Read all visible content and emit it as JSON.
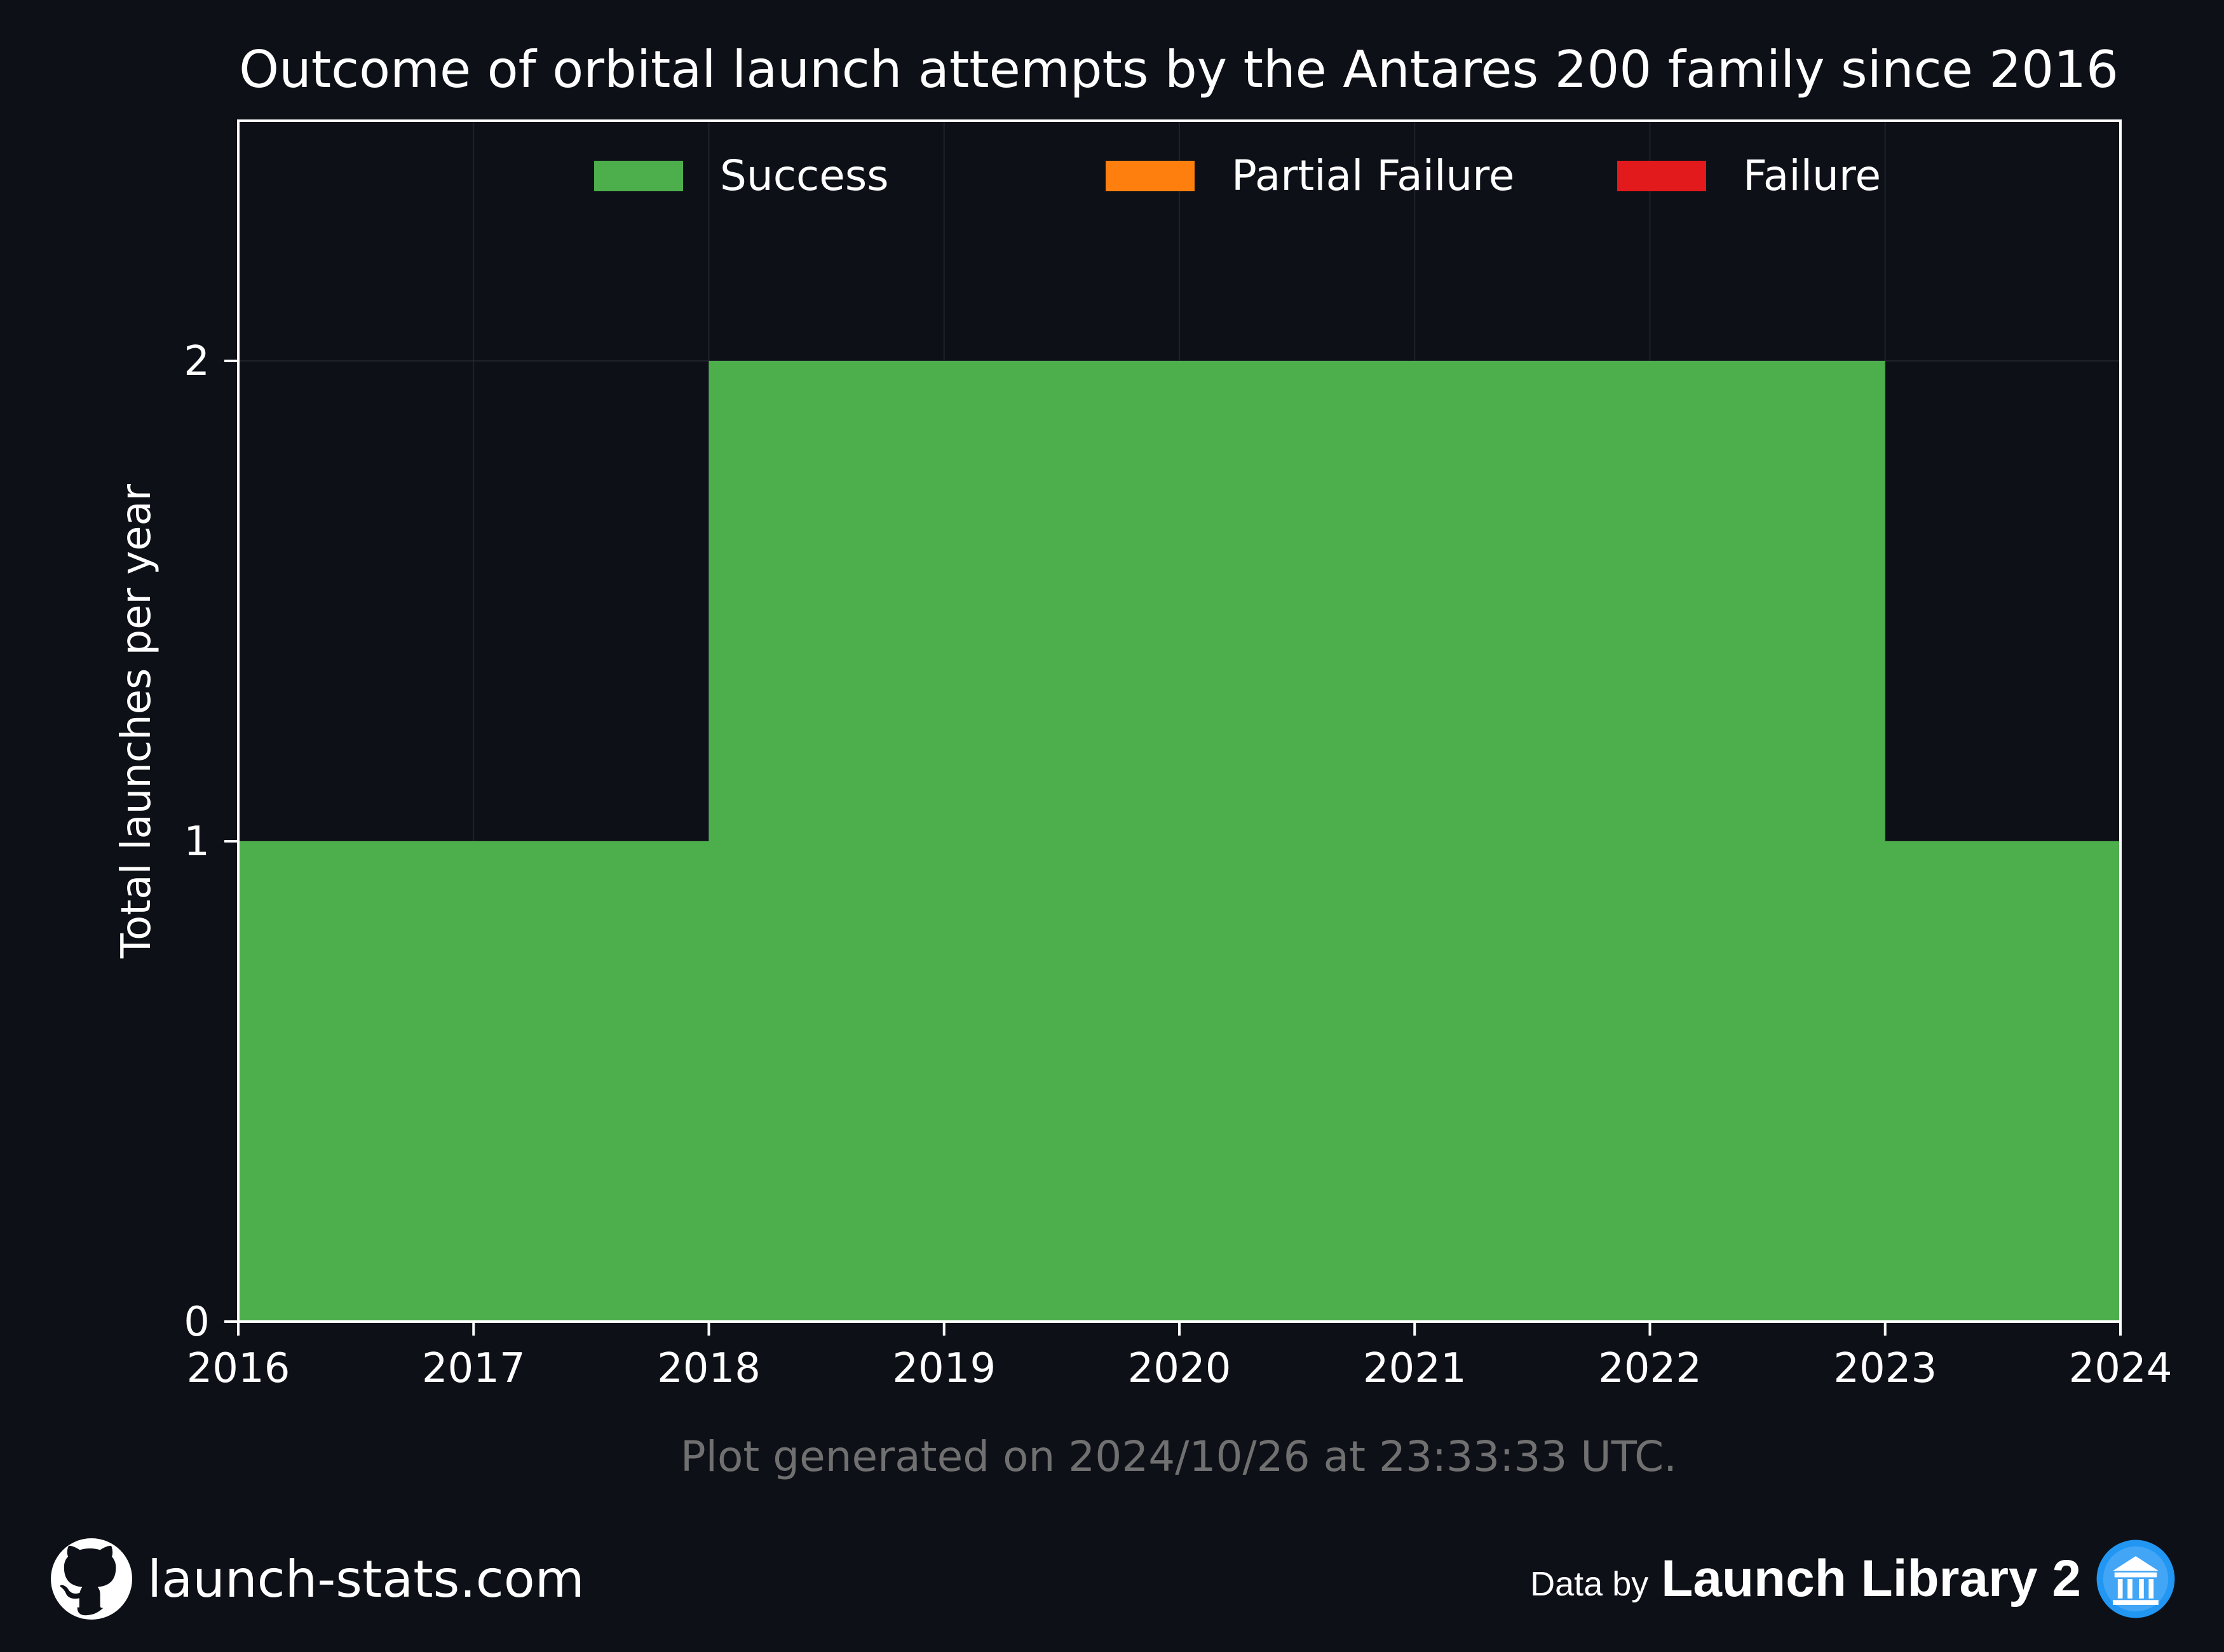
{
  "chart_data": {
    "type": "area",
    "title": "Outcome of orbital launch attempts by the Antares 200 family since 2016",
    "xlabel": "",
    "ylabel": "Total launches per year",
    "x": [
      2016,
      2017,
      2018,
      2019,
      2020,
      2021,
      2022,
      2023
    ],
    "xlim": [
      2016,
      2024
    ],
    "x_ticks": [
      "2016",
      "2017",
      "2018",
      "2019",
      "2020",
      "2021",
      "2022",
      "2023",
      "2024"
    ],
    "ylim": [
      0,
      2.5
    ],
    "y_ticks": [
      "0",
      "1",
      "2"
    ],
    "step": "post",
    "stacked": true,
    "series": [
      {
        "name": "Success",
        "color": "#4caf4c",
        "values": [
          1,
          1,
          2,
          2,
          2,
          2,
          2,
          1
        ]
      },
      {
        "name": "Partial Failure",
        "color": "#ff7f0e",
        "values": [
          0,
          0,
          0,
          0,
          0,
          0,
          0,
          0
        ]
      },
      {
        "name": "Failure",
        "color": "#e31a1c",
        "values": [
          0,
          0,
          0,
          0,
          0,
          0,
          0,
          0
        ]
      }
    ],
    "legend_position": "upper center",
    "grid": true,
    "background": "#0d1017"
  },
  "note": "Plot generated on 2024/10/26 at 23:33:33 UTC.",
  "footer": {
    "site": "launch-stats.com",
    "site_icon": "github-icon",
    "data_by": "Data by",
    "source": "Launch Library 2",
    "source_icon": "launch-library-icon"
  }
}
